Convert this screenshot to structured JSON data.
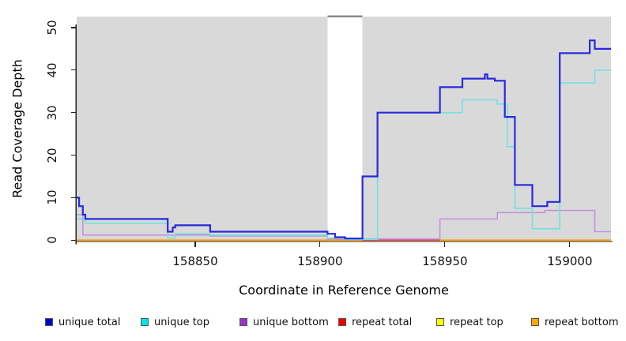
{
  "chart_data": {
    "type": "line",
    "style": "step-after",
    "title": "",
    "xlabel": "Coordinate in Reference Genome",
    "ylabel": "Read Coverage Depth",
    "xlim": [
      158802.5,
      159016.5
    ],
    "ylim": [
      0,
      50
    ],
    "x_ticks": [
      158850,
      158900,
      158950,
      159000
    ],
    "y_ticks": [
      0,
      10,
      20,
      30,
      40,
      50
    ],
    "grid": false,
    "legend_position": "bottom",
    "plot_background_color": "#d9d9d9",
    "no_data_region": {
      "from": 158903,
      "to": 158917,
      "fill": "#ffffff",
      "clipped_bar_color": "#8a8a8a"
    },
    "series": [
      {
        "name": "unique total",
        "legend_color": "#0000cc",
        "line_color": "#2929dd",
        "line_width": 2.2,
        "points": [
          [
            158802.5,
            10
          ],
          [
            158803.5,
            8
          ],
          [
            158805,
            6
          ],
          [
            158806,
            5
          ],
          [
            158839,
            2
          ],
          [
            158841,
            3
          ],
          [
            158842,
            3.5
          ],
          [
            158856,
            2
          ],
          [
            158903,
            1.5
          ],
          [
            158906,
            0.7
          ],
          [
            158910,
            0.4
          ],
          [
            158917,
            15
          ],
          [
            158923,
            30
          ],
          [
            158948,
            36
          ],
          [
            158957,
            38
          ],
          [
            158966,
            39
          ],
          [
            158967,
            38
          ],
          [
            158970,
            37.5
          ],
          [
            158974,
            29
          ],
          [
            158978,
            13
          ],
          [
            158985,
            8
          ],
          [
            158991,
            9
          ],
          [
            158996,
            44
          ],
          [
            159008,
            47
          ],
          [
            159010,
            45
          ]
        ]
      },
      {
        "name": "unique top",
        "legend_color": "#00e5e5",
        "line_color": "#70e2e2",
        "line_width": 1.6,
        "points": [
          [
            158802.5,
            5
          ],
          [
            158806,
            4
          ],
          [
            158839,
            0.5
          ],
          [
            158842,
            1.5
          ],
          [
            158856,
            1.2
          ],
          [
            158903,
            0.5
          ],
          [
            158910,
            0.2
          ],
          [
            158923,
            30
          ],
          [
            158957,
            33
          ],
          [
            158971,
            32
          ],
          [
            158975,
            22
          ],
          [
            158978,
            7.5
          ],
          [
            158985,
            2.7
          ],
          [
            158996,
            37
          ],
          [
            159010,
            40
          ]
        ]
      },
      {
        "name": "unique bottom",
        "legend_color": "#9933cc",
        "line_color": "#c393dd",
        "line_width": 1.6,
        "points": [
          [
            158802.5,
            6
          ],
          [
            158805,
            1.2
          ],
          [
            158856,
            1
          ],
          [
            158903,
            0.3
          ],
          [
            158948,
            5
          ],
          [
            158971,
            6.5
          ],
          [
            158990,
            7
          ],
          [
            159010,
            2
          ]
        ]
      },
      {
        "name": "repeat total",
        "legend_color": "#ee0000",
        "line_color": "#e04858",
        "line_width": 1.5,
        "points": [
          [
            158802.5,
            0
          ]
        ],
        "visible_segment": [
          158917,
          158948
        ]
      },
      {
        "name": "repeat top",
        "legend_color": "#ffff00",
        "line_color": "#ffff00",
        "line_width": 1.2,
        "points": [
          [
            158802.5,
            0
          ]
        ]
      },
      {
        "name": "repeat bottom",
        "legend_color": "#ffa500",
        "line_color": "#ff9f00",
        "line_width": 1.8,
        "points": [
          [
            158802.5,
            0
          ]
        ]
      }
    ]
  },
  "legend": {
    "items": [
      {
        "label": "unique total",
        "color": "#0000cc"
      },
      {
        "label": "unique top",
        "color": "#00e5e5"
      },
      {
        "label": "unique bottom",
        "color": "#9933cc"
      },
      {
        "label": "repeat total",
        "color": "#ee0000"
      },
      {
        "label": "repeat top",
        "color": "#ffff00"
      },
      {
        "label": "repeat bottom",
        "color": "#ffa500"
      }
    ]
  }
}
